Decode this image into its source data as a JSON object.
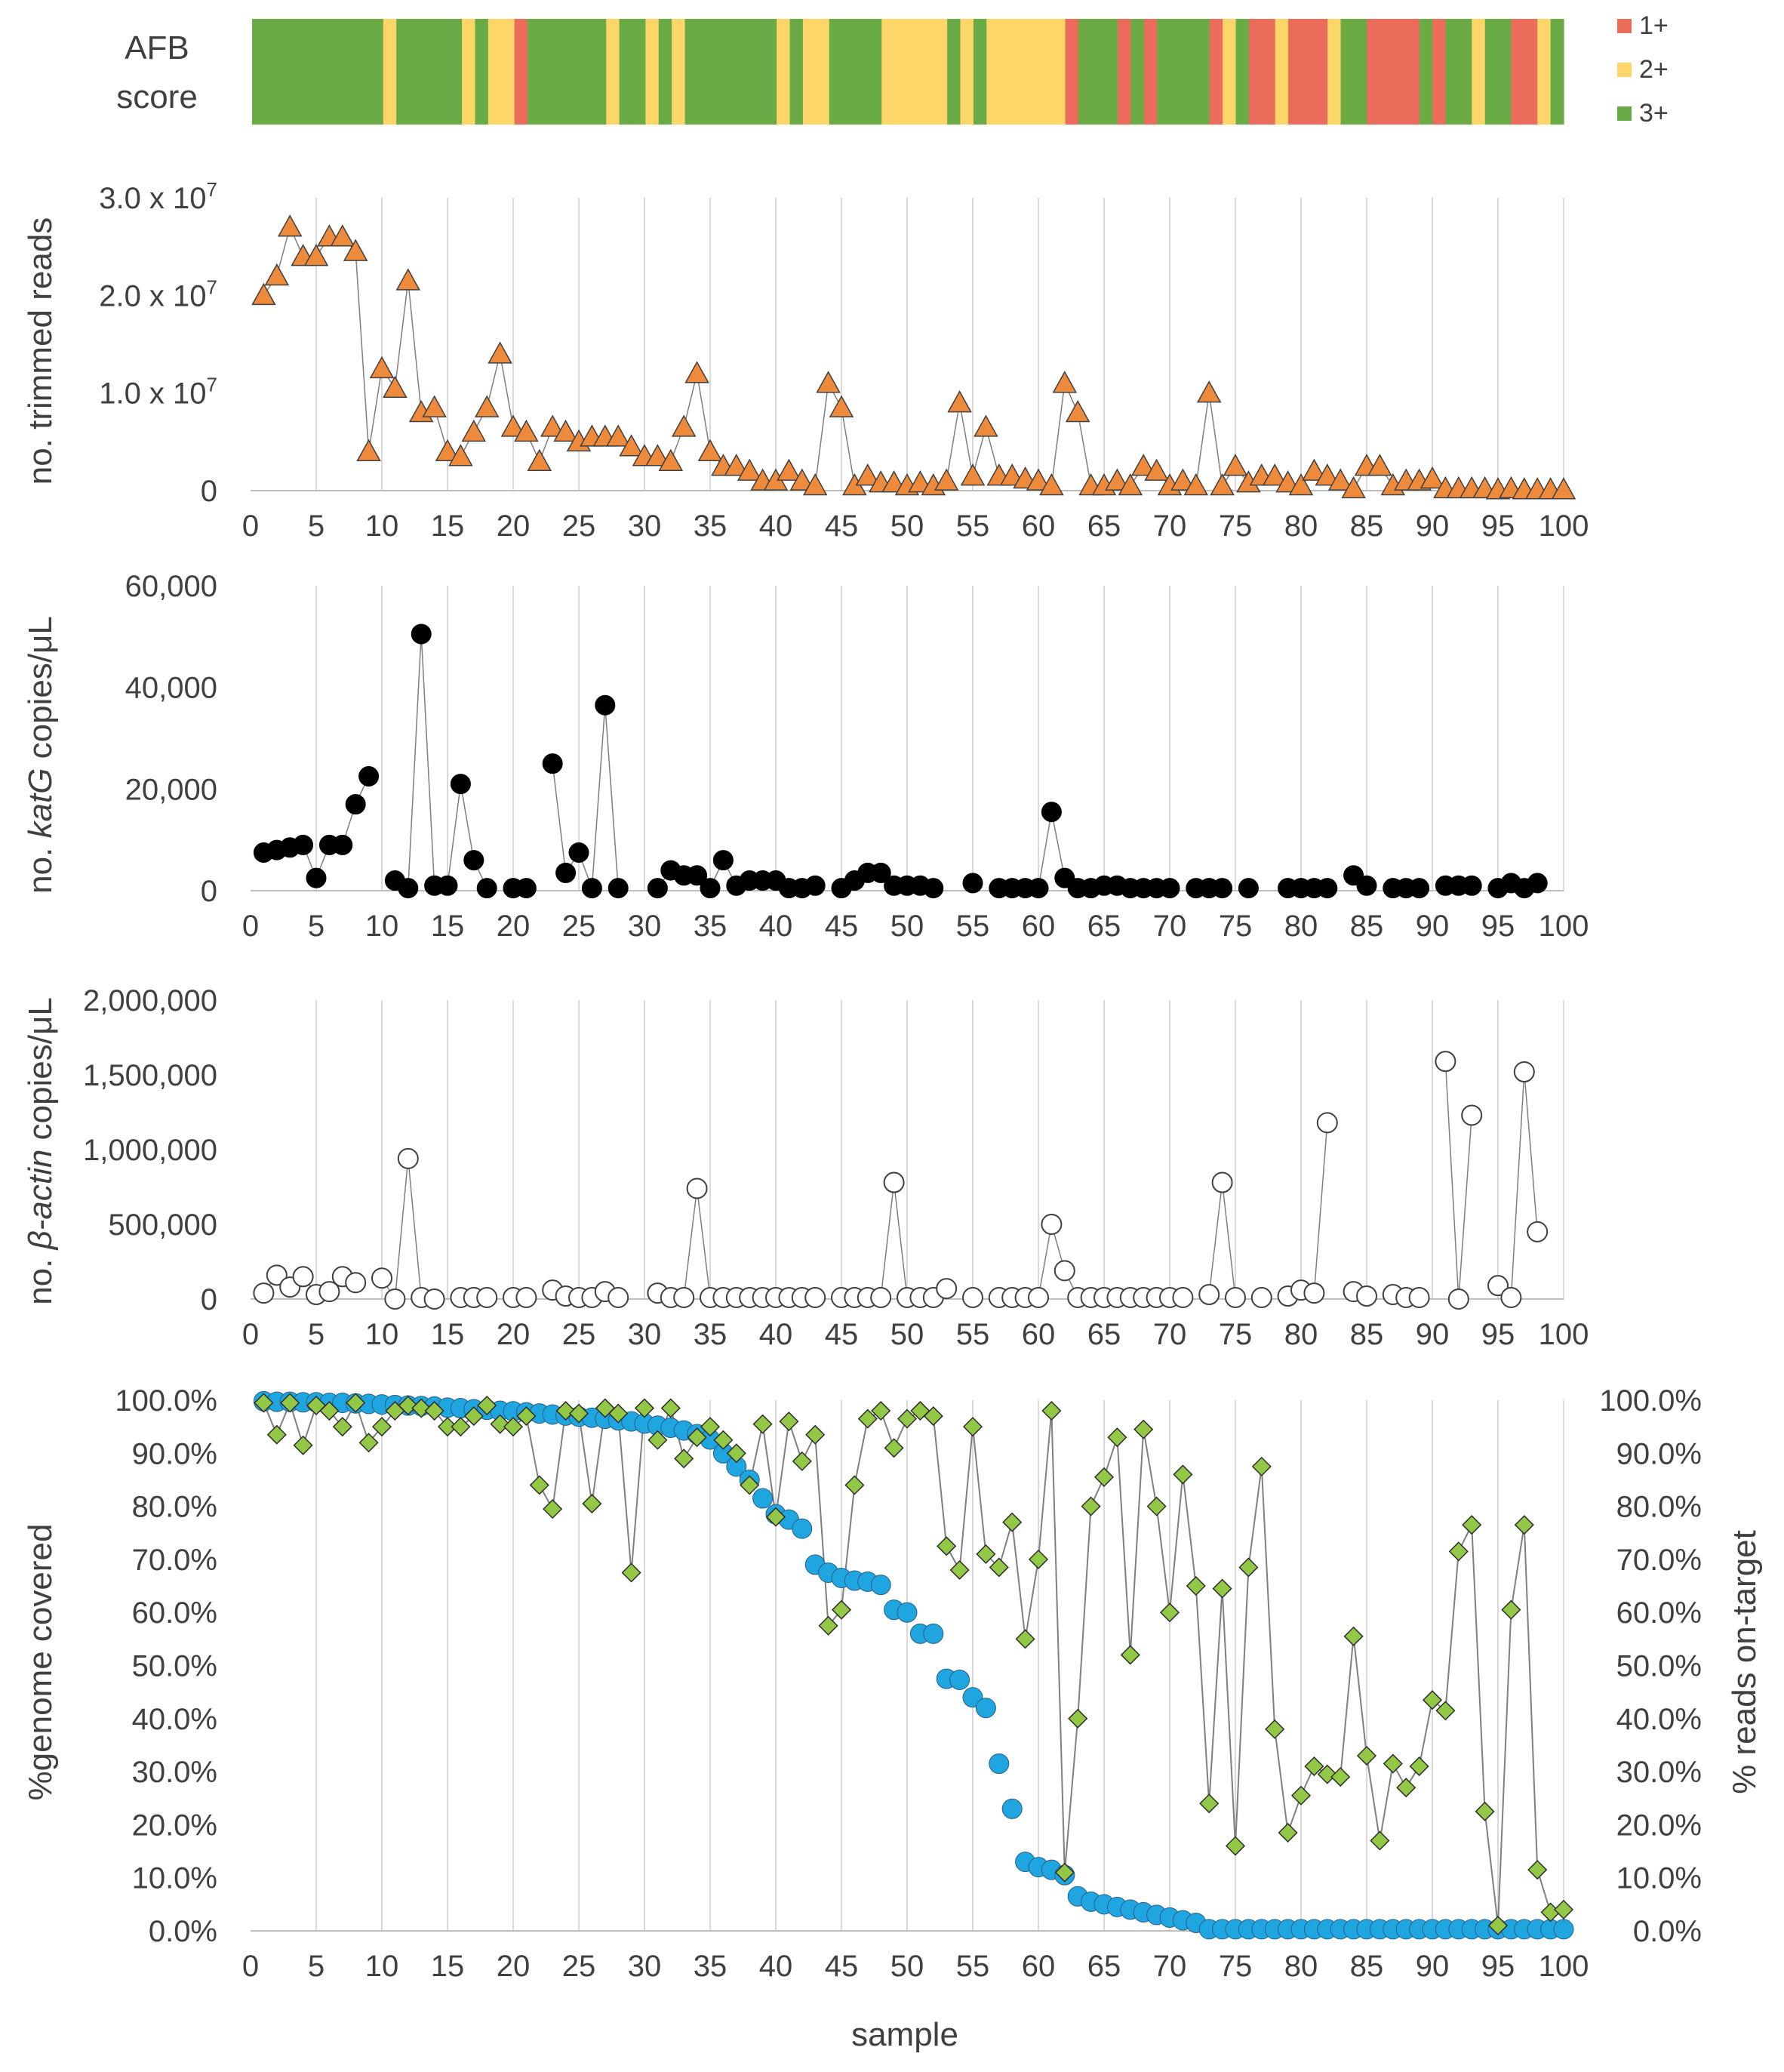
{
  "colors": {
    "afb_1": "#EC6C5C",
    "afb_2": "#FCD669",
    "afb_3": "#6AAB45",
    "reads_marker": "#EE8A3C",
    "katg_marker": "#000000",
    "actin_marker": "#FFFFFF",
    "coverage_marker": "#1FA5E0",
    "ontarget_marker": "#92C846",
    "grid": "#D9D9D9",
    "line": "#7F7F7F"
  },
  "chart_data": [
    {
      "type": "heatmap",
      "id": "afb",
      "ylabel_lines": [
        "AFB",
        "score"
      ],
      "legend": [
        {
          "label": "1+",
          "level": 1
        },
        {
          "label": "2+",
          "level": 2
        },
        {
          "label": "3+",
          "level": 3
        }
      ],
      "x": [
        1,
        2,
        3,
        4,
        5,
        6,
        7,
        8,
        9,
        10,
        11,
        12,
        13,
        14,
        15,
        16,
        17,
        18,
        19,
        20,
        21,
        22,
        23,
        24,
        25,
        26,
        27,
        28,
        29,
        30,
        31,
        32,
        33,
        34,
        35,
        36,
        37,
        38,
        39,
        40,
        41,
        42,
        43,
        44,
        45,
        46,
        47,
        48,
        49,
        50,
        51,
        52,
        53,
        54,
        55,
        56,
        57,
        58,
        59,
        60,
        61,
        62,
        63,
        64,
        65,
        66,
        67,
        68,
        69,
        70,
        71,
        72,
        73,
        74,
        75,
        76,
        77,
        78,
        79,
        80,
        81,
        82,
        83,
        84,
        85,
        86,
        87,
        88,
        89,
        90,
        91,
        92,
        93,
        94,
        95,
        96,
        97,
        98,
        99,
        100
      ],
      "values": [
        3,
        3,
        3,
        3,
        3,
        3,
        3,
        3,
        3,
        3,
        2,
        3,
        3,
        3,
        3,
        3,
        2,
        3,
        2,
        2,
        1,
        3,
        3,
        3,
        3,
        3,
        3,
        2,
        3,
        3,
        2,
        3,
        2,
        3,
        3,
        3,
        3,
        3,
        3,
        3,
        2,
        3,
        2,
        2,
        3,
        3,
        3,
        3,
        2,
        2,
        2,
        2,
        2,
        3,
        2,
        3,
        2,
        2,
        2,
        2,
        2,
        2,
        1,
        3,
        3,
        3,
        1,
        3,
        1,
        3,
        3,
        3,
        3,
        1,
        2,
        3,
        1,
        1,
        2,
        1,
        1,
        1,
        2,
        3,
        3,
        1,
        1,
        1,
        1,
        3,
        1,
        3,
        3,
        2,
        3,
        3,
        1,
        1,
        2,
        3
      ],
      "xlim": [
        1,
        100
      ]
    },
    {
      "type": "line",
      "id": "reads",
      "ylabel": "no. trimmed reads",
      "xlim": [
        0,
        100
      ],
      "ylim": [
        0,
        30000000
      ],
      "yticks": [
        0,
        10000000,
        20000000,
        30000000
      ],
      "ytick_labels": [
        {
          "base": "0",
          "exp": ""
        },
        {
          "base": "1.0 x 10",
          "exp": "7"
        },
        {
          "base": "2.0 x 10",
          "exp": "7"
        },
        {
          "base": "3.0 x 10",
          "exp": "7"
        }
      ],
      "xticks": [
        0,
        5,
        10,
        15,
        20,
        25,
        30,
        35,
        40,
        45,
        50,
        55,
        60,
        65,
        70,
        75,
        80,
        85,
        90,
        95,
        100
      ],
      "marker": "triangle",
      "x": [
        1,
        2,
        3,
        4,
        5,
        6,
        7,
        8,
        9,
        10,
        11,
        12,
        13,
        14,
        15,
        16,
        17,
        18,
        19,
        20,
        21,
        22,
        23,
        24,
        25,
        26,
        27,
        28,
        29,
        30,
        31,
        32,
        33,
        34,
        35,
        36,
        37,
        38,
        39,
        40,
        41,
        42,
        43,
        44,
        45,
        46,
        47,
        48,
        49,
        50,
        51,
        52,
        53,
        54,
        55,
        56,
        57,
        58,
        59,
        60,
        61,
        62,
        63,
        64,
        65,
        66,
        67,
        68,
        69,
        70,
        71,
        72,
        73,
        74,
        75,
        76,
        77,
        78,
        79,
        80,
        81,
        82,
        83,
        84,
        85,
        86,
        87,
        88,
        89,
        90,
        91,
        92,
        93,
        94,
        95,
        96,
        97,
        98,
        99,
        100
      ],
      "values": [
        20000000,
        22000000,
        27000000,
        24000000,
        24000000,
        26000000,
        26000000,
        24500000,
        4000000,
        12500000,
        10500000,
        21500000,
        8000000,
        8500000,
        4000000,
        3500000,
        6000000,
        8500000,
        14000000,
        6500000,
        6000000,
        3000000,
        6500000,
        6000000,
        5000000,
        5500000,
        5500000,
        5500000,
        4500000,
        3500000,
        3500000,
        3000000,
        6500000,
        12000000,
        4000000,
        2500000,
        2500000,
        2000000,
        1000000,
        1000000,
        2000000,
        1000000,
        500000,
        11000000,
        8500000,
        500000,
        1500000,
        800000,
        800000,
        500000,
        800000,
        500000,
        1000000,
        9000000,
        1500000,
        6500000,
        1500000,
        1500000,
        1200000,
        1000000,
        500000,
        11000000,
        8000000,
        500000,
        500000,
        1000000,
        500000,
        2500000,
        2000000,
        500000,
        1000000,
        500000,
        10000000,
        500000,
        2500000,
        800000,
        1500000,
        1500000,
        800000,
        500000,
        2000000,
        1500000,
        1000000,
        200000,
        2500000,
        2500000,
        500000,
        1000000,
        1000000,
        1200000,
        200000,
        200000,
        200000,
        200000,
        100000,
        200000,
        100000,
        100000,
        100000,
        100000
      ]
    },
    {
      "type": "line",
      "id": "katg",
      "ylabel_parts": [
        "no. ",
        "katG",
        " copies/μL"
      ],
      "xlim": [
        0,
        100
      ],
      "ylim": [
        0,
        60000
      ],
      "yticks": [
        0,
        20000,
        40000,
        60000
      ],
      "ytick_labels": [
        "0",
        "20,000",
        "40,000",
        "60,000"
      ],
      "xticks": [
        0,
        5,
        10,
        15,
        20,
        25,
        30,
        35,
        40,
        45,
        50,
        55,
        60,
        65,
        70,
        75,
        80,
        85,
        90,
        95,
        100
      ],
      "marker": "circle-black",
      "x": [
        1,
        2,
        3,
        4,
        5,
        6,
        7,
        8,
        9,
        10,
        11,
        12,
        13,
        14,
        15,
        16,
        17,
        18,
        19,
        20,
        21,
        22,
        23,
        24,
        25,
        26,
        27,
        28,
        29,
        30,
        31,
        32,
        33,
        34,
        35,
        36,
        37,
        38,
        39,
        40,
        41,
        42,
        43,
        44,
        45,
        46,
        47,
        48,
        49,
        50,
        51,
        52,
        53,
        54,
        55,
        56,
        57,
        58,
        59,
        60,
        61,
        62,
        63,
        64,
        65,
        66,
        67,
        68,
        69,
        70,
        71,
        72,
        73,
        74,
        75,
        76,
        77,
        78,
        79,
        80,
        81,
        82,
        83,
        84,
        85,
        86,
        87,
        88,
        89,
        90,
        91,
        92,
        93,
        94,
        95,
        96,
        97,
        98
      ],
      "values": [
        7500,
        8000,
        8500,
        9000,
        2500,
        9000,
        9000,
        17000,
        22500,
        null,
        2000,
        500,
        50500,
        1000,
        1000,
        21000,
        6000,
        500,
        null,
        500,
        500,
        null,
        25000,
        3500,
        7500,
        500,
        36500,
        500,
        null,
        null,
        500,
        4000,
        3000,
        3000,
        500,
        6000,
        1000,
        2000,
        2000,
        2000,
        500,
        500,
        1000,
        null,
        500,
        2000,
        3500,
        3500,
        1000,
        1000,
        1000,
        500,
        null,
        null,
        1500,
        null,
        500,
        500,
        500,
        500,
        15500,
        2500,
        500,
        500,
        1000,
        1000,
        500,
        500,
        500,
        500,
        null,
        500,
        500,
        500,
        null,
        500,
        null,
        null,
        500,
        500,
        500,
        500,
        null,
        3000,
        1000,
        null,
        500,
        500,
        500,
        null,
        1000,
        1000,
        1000,
        null,
        500,
        1500,
        500,
        1500
      ]
    },
    {
      "type": "line",
      "id": "actin",
      "ylabel_parts": [
        "no. ",
        "β-actin",
        " copies/μL"
      ],
      "xlim": [
        0,
        100
      ],
      "ylim": [
        0,
        2000000
      ],
      "yticks": [
        0,
        500000,
        1000000,
        1500000,
        2000000
      ],
      "ytick_labels": [
        "0",
        "500,000",
        "1,000,000",
        "1,500,000",
        "2,000,000"
      ],
      "xticks": [
        0,
        5,
        10,
        15,
        20,
        25,
        30,
        35,
        40,
        45,
        50,
        55,
        60,
        65,
        70,
        75,
        80,
        85,
        90,
        95,
        100
      ],
      "marker": "circle-white",
      "x": [
        1,
        2,
        3,
        4,
        5,
        6,
        7,
        8,
        9,
        10,
        11,
        12,
        13,
        14,
        15,
        16,
        17,
        18,
        19,
        20,
        21,
        22,
        23,
        24,
        25,
        26,
        27,
        28,
        29,
        30,
        31,
        32,
        33,
        34,
        35,
        36,
        37,
        38,
        39,
        40,
        41,
        42,
        43,
        44,
        45,
        46,
        47,
        48,
        49,
        50,
        51,
        52,
        53,
        54,
        55,
        56,
        57,
        58,
        59,
        60,
        61,
        62,
        63,
        64,
        65,
        66,
        67,
        68,
        69,
        70,
        71,
        72,
        73,
        74,
        75,
        76,
        77,
        78,
        79,
        80,
        81,
        82,
        83,
        84,
        85,
        86,
        87,
        88,
        89,
        90,
        91,
        92,
        93,
        94,
        95,
        96,
        97,
        98
      ],
      "values": [
        40000,
        160000,
        80000,
        150000,
        30000,
        50000,
        150000,
        110000,
        null,
        140000,
        0,
        940000,
        10000,
        0,
        null,
        10000,
        10000,
        10000,
        null,
        10000,
        10000,
        null,
        60000,
        20000,
        10000,
        10000,
        50000,
        10000,
        null,
        null,
        40000,
        10000,
        10000,
        740000,
        10000,
        10000,
        10000,
        10000,
        10000,
        10000,
        10000,
        10000,
        10000,
        null,
        10000,
        10000,
        10000,
        10000,
        780000,
        10000,
        10000,
        10000,
        70000,
        null,
        10000,
        null,
        10000,
        10000,
        10000,
        10000,
        500000,
        190000,
        10000,
        10000,
        10000,
        10000,
        10000,
        10000,
        10000,
        10000,
        10000,
        null,
        30000,
        780000,
        10000,
        null,
        10000,
        null,
        20000,
        60000,
        40000,
        1180000,
        null,
        50000,
        20000,
        null,
        30000,
        10000,
        10000,
        null,
        1590000,
        0,
        1230000,
        null,
        90000,
        10000,
        1520000,
        450000
      ]
    },
    {
      "type": "scatter",
      "id": "coverage",
      "ylabel": "%genome covered",
      "ylabel_right": "% reads on-target",
      "xlabel": "sample",
      "xlim": [
        0,
        100
      ],
      "ylim": [
        0,
        100
      ],
      "yticks": [
        0,
        10,
        20,
        30,
        40,
        50,
        60,
        70,
        80,
        90,
        100
      ],
      "ytick_labels": [
        "0.0%",
        "10.0%",
        "20.0%",
        "30.0%",
        "40.0%",
        "50.0%",
        "60.0%",
        "70.0%",
        "80.0%",
        "90.0%",
        "100.0%"
      ],
      "xticks": [
        0,
        5,
        10,
        15,
        20,
        25,
        30,
        35,
        40,
        45,
        50,
        55,
        60,
        65,
        70,
        75,
        80,
        85,
        90,
        95,
        100
      ],
      "x": [
        1,
        2,
        3,
        4,
        5,
        6,
        7,
        8,
        9,
        10,
        11,
        12,
        13,
        14,
        15,
        16,
        17,
        18,
        19,
        20,
        21,
        22,
        23,
        24,
        25,
        26,
        27,
        28,
        29,
        30,
        31,
        32,
        33,
        34,
        35,
        36,
        37,
        38,
        39,
        40,
        41,
        42,
        43,
        44,
        45,
        46,
        47,
        48,
        49,
        50,
        51,
        52,
        53,
        54,
        55,
        56,
        57,
        58,
        59,
        60,
        61,
        62,
        63,
        64,
        65,
        66,
        67,
        68,
        69,
        70,
        71,
        72,
        73,
        74,
        75,
        76,
        77,
        78,
        79,
        80,
        81,
        82,
        83,
        84,
        85,
        86,
        87,
        88,
        89,
        90,
        91,
        92,
        93,
        94,
        95,
        96,
        97,
        98,
        99,
        100
      ],
      "series": [
        {
          "name": "%genome covered",
          "marker": "circle-blue",
          "connect": false,
          "values": [
            99.8,
            99.7,
            99.7,
            99.6,
            99.6,
            99.5,
            99.5,
            99.4,
            99.3,
            99.2,
            99.1,
            99.0,
            98.9,
            98.8,
            98.6,
            98.5,
            98.3,
            98.2,
            98.0,
            97.9,
            97.7,
            97.5,
            97.3,
            97.1,
            96.9,
            96.7,
            96.5,
            96.2,
            96.0,
            95.6,
            95.2,
            94.8,
            94.3,
            93.6,
            92.6,
            90.0,
            87.5,
            85.0,
            81.5,
            78.5,
            77.5,
            75.8,
            69.0,
            67.5,
            66.5,
            66.0,
            65.8,
            65.2,
            60.5,
            60.0,
            56.0,
            56.0,
            47.5,
            47.3,
            44.0,
            42.0,
            31.5,
            23.0,
            13.0,
            12.0,
            11.5,
            10.5,
            6.5,
            5.5,
            5.0,
            4.5,
            4.0,
            3.5,
            3.0,
            2.5,
            2.0,
            1.5,
            0.3,
            0.3,
            0.3,
            0.3,
            0.3,
            0.3,
            0.3,
            0.3,
            0.3,
            0.3,
            0.3,
            0.3,
            0.3,
            0.3,
            0.3,
            0.3,
            0.3,
            0.3,
            0.3,
            0.3,
            0.3,
            0.3,
            0.3,
            0.3,
            0.3,
            0.3,
            0.3,
            0.3
          ]
        },
        {
          "name": "% reads on-target",
          "marker": "diamond-green",
          "connect": true,
          "values": [
            99.5,
            93.5,
            99.5,
            91.5,
            99.0,
            98.0,
            95.0,
            99.5,
            92.0,
            95.0,
            98.0,
            99.0,
            98.5,
            98.0,
            95.0,
            95.0,
            97.0,
            99.0,
            95.5,
            95.0,
            97.0,
            84.0,
            79.5,
            98.0,
            97.5,
            80.5,
            98.5,
            97.5,
            67.5,
            98.5,
            92.5,
            98.5,
            89.0,
            93.0,
            95.0,
            92.5,
            90.0,
            84.0,
            95.5,
            78.0,
            96.0,
            88.5,
            93.5,
            57.5,
            60.5,
            84.0,
            96.5,
            98.0,
            91.0,
            96.5,
            98.0,
            97.0,
            72.5,
            68.0,
            95.0,
            71.0,
            68.5,
            77.0,
            55.0,
            70.0,
            98.0,
            11.0,
            40.0,
            80.0,
            85.5,
            93.0,
            52.0,
            94.5,
            80.0,
            60.0,
            86.0,
            65.0,
            24.0,
            64.5,
            16.0,
            68.5,
            87.5,
            38.0,
            18.5,
            25.5,
            31.0,
            29.5,
            29.0,
            55.5,
            33.0,
            17.0,
            31.5,
            27.0,
            31.0,
            43.5,
            41.5,
            71.5,
            76.5,
            22.5,
            1.0,
            60.5,
            76.5,
            11.5,
            3.5,
            4.0
          ]
        }
      ]
    }
  ]
}
